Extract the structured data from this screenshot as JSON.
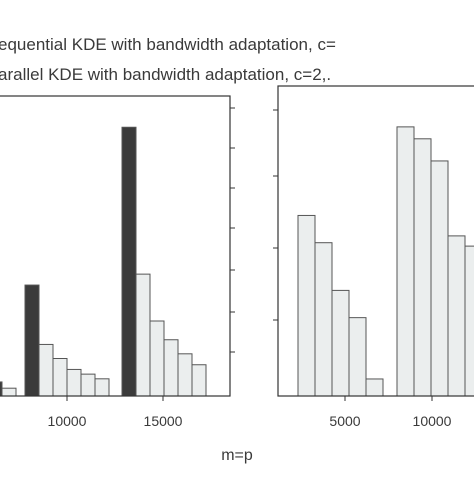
{
  "legend": {
    "entries": [
      "equential KDE with bandwidth adaptation, c=",
      "arallel KDE with bandwidth adaptation, c=2,."
    ]
  },
  "xlabel": "m=p",
  "colors": {
    "dark_bar": "#3b3b3b",
    "light_bar": "#ebeeee",
    "bar_edge": "#555555",
    "frame": "#333333"
  },
  "chart_data": [
    {
      "type": "bar",
      "panel": "left",
      "xticks": [
        "10000",
        "15000"
      ],
      "groups": [
        {
          "bars": [
            {
              "series": "sequential",
              "value": 0.09
            },
            {
              "series": "parallel",
              "value": 0.05
            }
          ]
        },
        {
          "bars": [
            {
              "series": "sequential",
              "value": 0.71
            },
            {
              "series": "parallel",
              "value": 0.33
            },
            {
              "series": "parallel",
              "value": 0.24
            },
            {
              "series": "parallel",
              "value": 0.17
            },
            {
              "series": "parallel",
              "value": 0.14
            },
            {
              "series": "parallel",
              "value": 0.11
            }
          ]
        },
        {
          "bars": [
            {
              "series": "sequential",
              "value": 1.72
            },
            {
              "series": "parallel",
              "value": 0.78
            },
            {
              "series": "parallel",
              "value": 0.48
            },
            {
              "series": "parallel",
              "value": 0.36
            },
            {
              "series": "parallel",
              "value": 0.27
            },
            {
              "series": "parallel",
              "value": 0.2
            }
          ]
        }
      ],
      "ylim": [
        0,
        1.92
      ],
      "grid": false
    },
    {
      "type": "bar",
      "panel": "right",
      "xticks": [
        "5000",
        "10000"
      ],
      "groups": [
        {
          "bars": [
            {
              "series": "parallel",
              "value": 1.06
            },
            {
              "series": "parallel",
              "value": 0.9
            },
            {
              "series": "parallel",
              "value": 0.62
            },
            {
              "series": "parallel",
              "value": 0.46
            },
            {
              "series": "parallel",
              "value": 0.1
            }
          ]
        },
        {
          "bars": [
            {
              "series": "parallel",
              "value": 1.58
            },
            {
              "series": "parallel",
              "value": 1.51
            },
            {
              "series": "parallel",
              "value": 1.38
            },
            {
              "series": "parallel",
              "value": 0.94
            },
            {
              "series": "parallel",
              "value": 0.88
            }
          ]
        }
      ],
      "ylim": [
        0,
        1.82
      ],
      "grid": false
    }
  ]
}
